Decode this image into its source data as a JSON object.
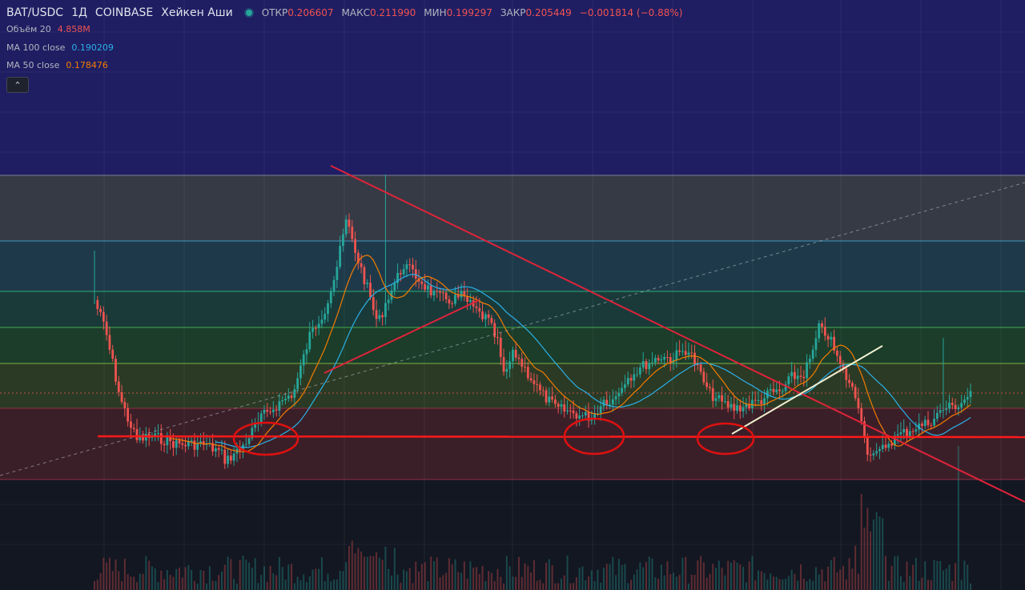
{
  "legend": {
    "symbol": "BAT/USDC",
    "interval": "1Д",
    "exchange": "COINBASE",
    "chart_style": "Хейкен Аши",
    "open_label": "ОТКР",
    "open": "0.206607",
    "high_label": "МАКС",
    "high": "0.211990",
    "low_label": "МИН",
    "low": "0.199297",
    "close_label": "ЗАКР",
    "close": "0.205449",
    "change": "−0.001814 (−0.88%)"
  },
  "indicators": [
    {
      "label": "Объём 20",
      "value": "4.858M",
      "color": "#ef5350"
    },
    {
      "label": "MA 100 close",
      "value": "0.190209",
      "color": "#2ab0e8"
    },
    {
      "label": "MA 50 close",
      "value": "0.178476",
      "color": "#f57c00"
    }
  ],
  "collapse_glyph": "⌃",
  "colors": {
    "up": "#26a69a",
    "down": "#ef5350",
    "ma100": "#2ab0e8",
    "ma50": "#f57c00",
    "trendline": "#e0233a",
    "support": "#ff1a1a",
    "marker": "#e01010",
    "white_line": "#f0f0d0",
    "bg": "#131722",
    "top_zone": "#1f1e63"
  },
  "chart_data": {
    "type": "heikin-ashi candlestick",
    "title": "BAT/USDC · 1Д · COINBASE",
    "ma_periods": [
      100,
      50
    ],
    "fib_bands": [
      {
        "name": "band-1",
        "color": "#363a45"
      },
      {
        "name": "band-2",
        "color": "#1e3a4a"
      },
      {
        "name": "band-3",
        "color": "#1a3a3a"
      },
      {
        "name": "band-4",
        "color": "#1b3d2a"
      },
      {
        "name": "band-5",
        "color": "#2b3a25"
      },
      {
        "name": "band-6",
        "color": "#3b1f28"
      }
    ],
    "drawings": [
      "descending trendline",
      "horizontal support",
      "ascending trendline",
      "dashed diagonal",
      "white trendline",
      "circle markers x3"
    ],
    "grid": true
  }
}
